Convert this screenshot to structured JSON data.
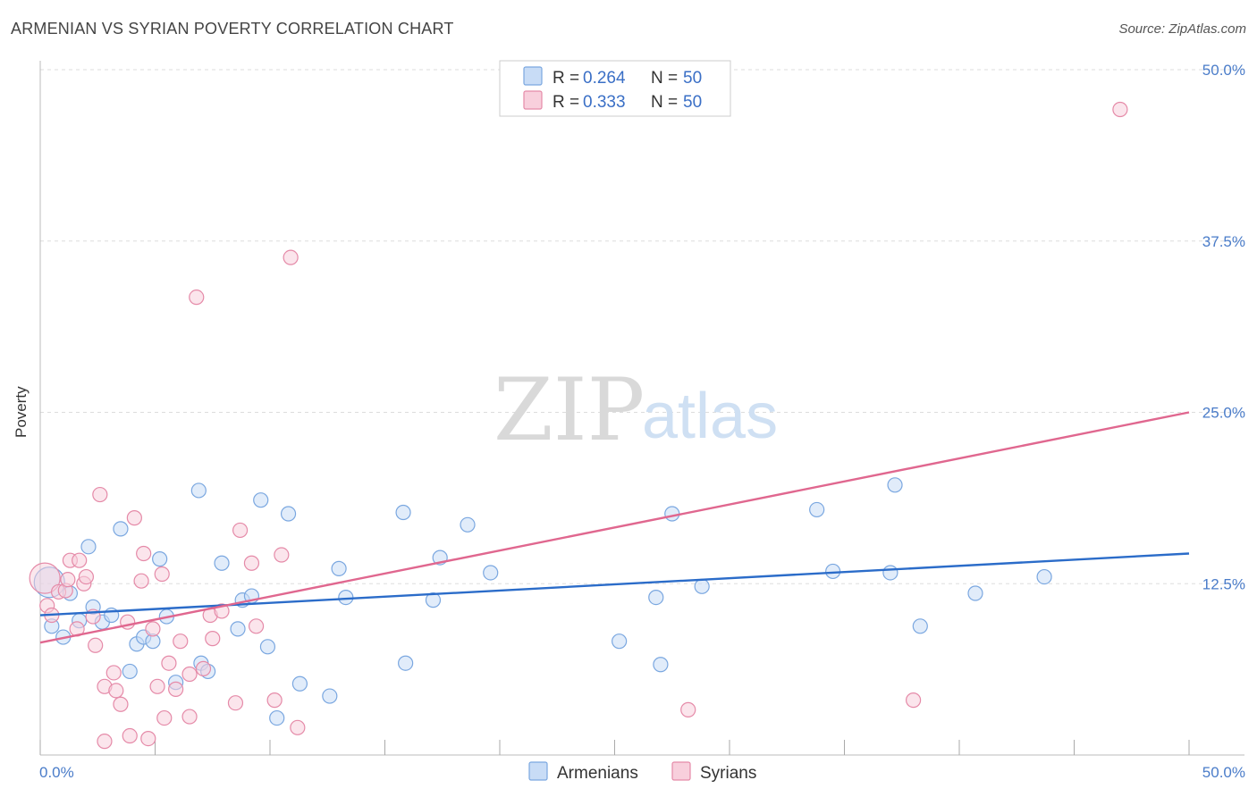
{
  "title": "ARMENIAN VS SYRIAN POVERTY CORRELATION CHART",
  "source": "Source: ZipAtlas.com",
  "watermark": {
    "zip": "ZIP",
    "atlas": "atlas"
  },
  "colors": {
    "armenians_fill": "#c8dcf6",
    "armenians_stroke": "#7aa7e0",
    "armenians_line": "#2b6cc9",
    "syrians_fill": "#f8cfdc",
    "syrians_stroke": "#e58aa8",
    "syrians_line": "#e0678f",
    "tick_label": "#4a7cc9",
    "grid": "#dddddd"
  },
  "legend": {
    "rows": [
      {
        "r_label": "R = ",
        "r_value": "0.264",
        "n_label": "N = ",
        "n_value": "50"
      },
      {
        "r_label": "R = ",
        "r_value": "0.333",
        "n_label": "N = ",
        "n_value": "50"
      }
    ]
  },
  "chart_data": {
    "type": "scatter",
    "title": "ARMENIAN VS SYRIAN POVERTY CORRELATION CHART",
    "xlabel": "",
    "ylabel": "Poverty",
    "xlim": [
      0,
      50
    ],
    "ylim": [
      0,
      50
    ],
    "x_tick_labels": [
      "0.0%",
      "50.0%"
    ],
    "y_ticks": [
      12.5,
      25.0,
      37.5,
      50.0
    ],
    "y_tick_labels": [
      "12.5%",
      "25.0%",
      "37.5%",
      "50.0%"
    ],
    "grid": true,
    "legend_position": "top-center",
    "series": [
      {
        "name": "Armenians",
        "r": 0.264,
        "n": 50,
        "trend": {
          "x": [
            0,
            50
          ],
          "y": [
            10.2,
            14.7
          ]
        },
        "points": [
          {
            "x": 0.4,
            "y": 12.6,
            "big": true
          },
          {
            "x": 0.5,
            "y": 9.4
          },
          {
            "x": 1.0,
            "y": 8.6
          },
          {
            "x": 1.3,
            "y": 11.8
          },
          {
            "x": 1.7,
            "y": 9.8
          },
          {
            "x": 2.1,
            "y": 15.2
          },
          {
            "x": 2.3,
            "y": 10.8
          },
          {
            "x": 2.7,
            "y": 9.7
          },
          {
            "x": 3.1,
            "y": 10.2
          },
          {
            "x": 3.5,
            "y": 16.5
          },
          {
            "x": 3.9,
            "y": 6.1
          },
          {
            "x": 4.2,
            "y": 8.1
          },
          {
            "x": 4.5,
            "y": 8.6
          },
          {
            "x": 4.9,
            "y": 8.3
          },
          {
            "x": 5.2,
            "y": 14.3
          },
          {
            "x": 5.5,
            "y": 10.1
          },
          {
            "x": 5.9,
            "y": 5.3
          },
          {
            "x": 6.9,
            "y": 19.3
          },
          {
            "x": 7.0,
            "y": 6.7
          },
          {
            "x": 7.3,
            "y": 6.1
          },
          {
            "x": 7.9,
            "y": 14.0
          },
          {
            "x": 8.6,
            "y": 9.2
          },
          {
            "x": 8.8,
            "y": 11.3
          },
          {
            "x": 9.2,
            "y": 11.6
          },
          {
            "x": 9.6,
            "y": 18.6
          },
          {
            "x": 9.9,
            "y": 7.9
          },
          {
            "x": 10.3,
            "y": 2.7
          },
          {
            "x": 10.8,
            "y": 17.6
          },
          {
            "x": 11.3,
            "y": 5.2
          },
          {
            "x": 12.6,
            "y": 4.3
          },
          {
            "x": 13.0,
            "y": 13.6
          },
          {
            "x": 13.3,
            "y": 11.5
          },
          {
            "x": 15.9,
            "y": 6.7
          },
          {
            "x": 15.8,
            "y": 17.7
          },
          {
            "x": 17.1,
            "y": 11.3
          },
          {
            "x": 17.4,
            "y": 14.4
          },
          {
            "x": 18.6,
            "y": 16.8
          },
          {
            "x": 19.6,
            "y": 13.3
          },
          {
            "x": 25.2,
            "y": 8.3
          },
          {
            "x": 26.8,
            "y": 11.5
          },
          {
            "x": 27.0,
            "y": 6.6
          },
          {
            "x": 27.5,
            "y": 17.6
          },
          {
            "x": 28.8,
            "y": 12.3
          },
          {
            "x": 33.8,
            "y": 17.9
          },
          {
            "x": 34.5,
            "y": 13.4
          },
          {
            "x": 37.0,
            "y": 13.3
          },
          {
            "x": 37.2,
            "y": 19.7
          },
          {
            "x": 38.3,
            "y": 9.4
          },
          {
            "x": 40.7,
            "y": 11.8
          },
          {
            "x": 43.7,
            "y": 13.0
          }
        ]
      },
      {
        "name": "Syrians",
        "r": 0.333,
        "n": 50,
        "trend": {
          "x": [
            0,
            50
          ],
          "y": [
            8.2,
            25.0
          ]
        },
        "points": [
          {
            "x": 0.2,
            "y": 12.9,
            "big": true
          },
          {
            "x": 0.3,
            "y": 10.9
          },
          {
            "x": 0.5,
            "y": 10.2
          },
          {
            "x": 0.8,
            "y": 11.9
          },
          {
            "x": 1.1,
            "y": 12.0
          },
          {
            "x": 1.2,
            "y": 12.8
          },
          {
            "x": 1.3,
            "y": 14.2
          },
          {
            "x": 1.6,
            "y": 9.2
          },
          {
            "x": 1.7,
            "y": 14.2
          },
          {
            "x": 1.9,
            "y": 12.5
          },
          {
            "x": 2.0,
            "y": 13.0
          },
          {
            "x": 2.3,
            "y": 10.1
          },
          {
            "x": 2.4,
            "y": 8.0
          },
          {
            "x": 2.6,
            "y": 19.0
          },
          {
            "x": 2.8,
            "y": 5.0
          },
          {
            "x": 2.8,
            "y": 1.0
          },
          {
            "x": 3.2,
            "y": 6.0
          },
          {
            "x": 3.3,
            "y": 4.7
          },
          {
            "x": 3.5,
            "y": 3.7
          },
          {
            "x": 3.8,
            "y": 9.7
          },
          {
            "x": 3.9,
            "y": 1.4
          },
          {
            "x": 4.1,
            "y": 17.3
          },
          {
            "x": 4.4,
            "y": 12.7
          },
          {
            "x": 4.5,
            "y": 14.7
          },
          {
            "x": 4.7,
            "y": 1.2
          },
          {
            "x": 4.9,
            "y": 9.2
          },
          {
            "x": 5.1,
            "y": 5.0
          },
          {
            "x": 5.3,
            "y": 13.2
          },
          {
            "x": 5.4,
            "y": 2.7
          },
          {
            "x": 5.6,
            "y": 6.7
          },
          {
            "x": 5.9,
            "y": 4.8
          },
          {
            "x": 6.1,
            "y": 8.3
          },
          {
            "x": 6.5,
            "y": 5.9
          },
          {
            "x": 6.5,
            "y": 2.8
          },
          {
            "x": 6.8,
            "y": 33.4
          },
          {
            "x": 7.1,
            "y": 6.3
          },
          {
            "x": 7.4,
            "y": 10.2
          },
          {
            "x": 7.5,
            "y": 8.5
          },
          {
            "x": 7.9,
            "y": 10.5
          },
          {
            "x": 8.5,
            "y": 3.8
          },
          {
            "x": 8.7,
            "y": 16.4
          },
          {
            "x": 9.2,
            "y": 14.0
          },
          {
            "x": 9.4,
            "y": 9.4
          },
          {
            "x": 10.2,
            "y": 4.0
          },
          {
            "x": 10.5,
            "y": 14.6
          },
          {
            "x": 10.9,
            "y": 36.3
          },
          {
            "x": 11.2,
            "y": 2.0
          },
          {
            "x": 28.2,
            "y": 3.3
          },
          {
            "x": 38.0,
            "y": 4.0
          },
          {
            "x": 47.0,
            "y": 47.1
          }
        ]
      }
    ]
  },
  "bottom_legend": [
    "Armenians",
    "Syrians"
  ]
}
